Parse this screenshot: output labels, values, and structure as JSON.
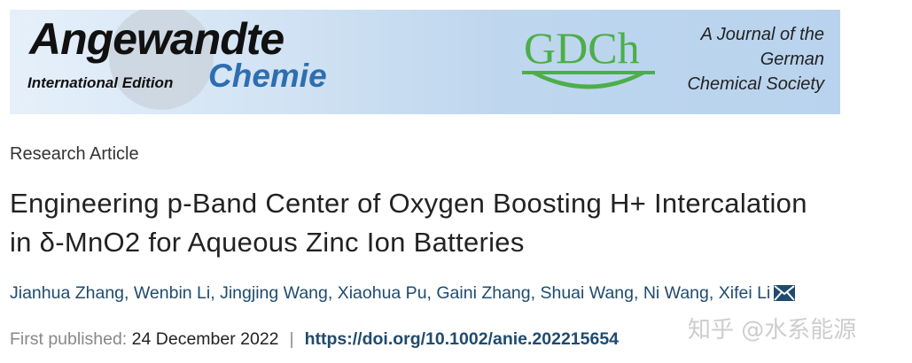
{
  "banner": {
    "journal_word1": "Angewandte",
    "journal_word2": "Chemie",
    "edition": "International Edition",
    "society_logo": "GDCh",
    "society_line1": "A Journal of the",
    "society_line2": "German",
    "society_line3": "Chemical Society",
    "colors": {
      "chemie_blue": "#2e6eb0",
      "gdch_green": "#4cae48"
    }
  },
  "article": {
    "type": "Research Article",
    "title_line1": "Engineering p-Band Center of Oxygen Boosting H+ Intercalation",
    "title_line2": "in δ-MnO2 for Aqueous Zinc Ion Batteries",
    "authors": [
      "Jianhua Zhang",
      "Wenbin Li",
      "Jingjing Wang",
      "Xiaohua Pu",
      "Gaini Zhang",
      "Shuai Wang",
      "Ni Wang",
      "Xifei Li"
    ],
    "corresponding_icon": "envelope-icon",
    "published_label": "First published:",
    "published_date": "24 December 2022",
    "separator": "|",
    "doi": "https://doi.org/10.1002/anie.202215654"
  },
  "watermark": "知乎 @水系能源"
}
